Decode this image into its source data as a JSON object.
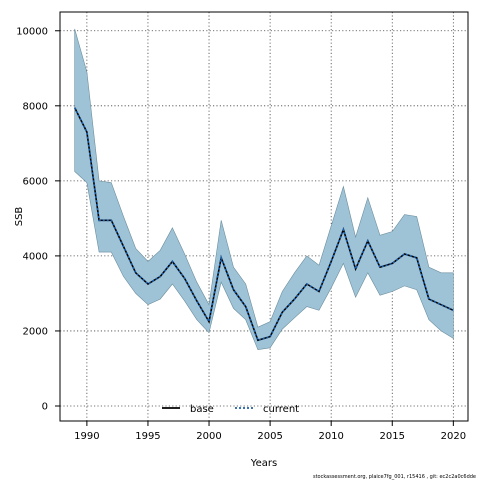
{
  "chart_data": {
    "type": "line",
    "title": "",
    "xlabel": "Years",
    "ylabel": "SSB",
    "xlim": [
      1987.8,
      2021.2
    ],
    "ylim": [
      -400,
      10500
    ],
    "xticks": [
      1990,
      1995,
      2000,
      2005,
      2010,
      2015,
      2020
    ],
    "yticks": [
      0,
      2000,
      4000,
      6000,
      8000,
      10000
    ],
    "grid": true,
    "legend_position": "bottom-center",
    "x": [
      1989,
      1990,
      1991,
      1992,
      1993,
      1994,
      1995,
      1996,
      1997,
      1998,
      1999,
      2000,
      2001,
      2002,
      2003,
      2004,
      2005,
      2006,
      2007,
      2008,
      2009,
      2010,
      2011,
      2012,
      2013,
      2014,
      2015,
      2016,
      2017,
      2018,
      2019,
      2020
    ],
    "band": {
      "color": "#9fc3d6",
      "stroke": "#6b8e9e",
      "upper": [
        10050,
        8900,
        6000,
        5950,
        5050,
        4200,
        3850,
        4150,
        4750,
        4050,
        3300,
        2700,
        4950,
        3700,
        3250,
        2100,
        2250,
        3050,
        3550,
        4000,
        3750,
        4800,
        5850,
        4500,
        5550,
        4550,
        4650,
        5100,
        5050,
        3700,
        3550,
        3550
      ],
      "lower": [
        6250,
        5950,
        4100,
        4100,
        3450,
        3000,
        2700,
        2850,
        3250,
        2800,
        2300,
        1950,
        3300,
        2600,
        2300,
        1500,
        1550,
        2050,
        2350,
        2650,
        2550,
        3150,
        3800,
        2900,
        3550,
        2950,
        3050,
        3200,
        3100,
        2300,
        2000,
        1800
      ]
    },
    "series": [
      {
        "name": "base",
        "color": "#000000",
        "dash": "solid",
        "values": [
          7950,
          7300,
          4950,
          4950,
          4250,
          3550,
          3250,
          3450,
          3850,
          3400,
          2800,
          2250,
          3950,
          3100,
          2650,
          1750,
          1850,
          2500,
          2850,
          3250,
          3050,
          3850,
          4700,
          3650,
          4400,
          3700,
          3800,
          4050,
          3950,
          2850,
          2700,
          2550
        ]
      },
      {
        "name": "current",
        "color": "#1f5fa8",
        "dash": "dotted",
        "values": [
          7950,
          7300,
          4950,
          4950,
          4250,
          3550,
          3250,
          3450,
          3850,
          3400,
          2800,
          2250,
          3950,
          3100,
          2650,
          1750,
          1850,
          2500,
          2850,
          3250,
          3050,
          3850,
          4700,
          3650,
          4400,
          3700,
          3800,
          4050,
          3950,
          2850,
          2700,
          2550
        ]
      }
    ],
    "footer": "stockassessment.org, plaice7fg_001, r15416 , git: ec2c2a0c6dde"
  }
}
